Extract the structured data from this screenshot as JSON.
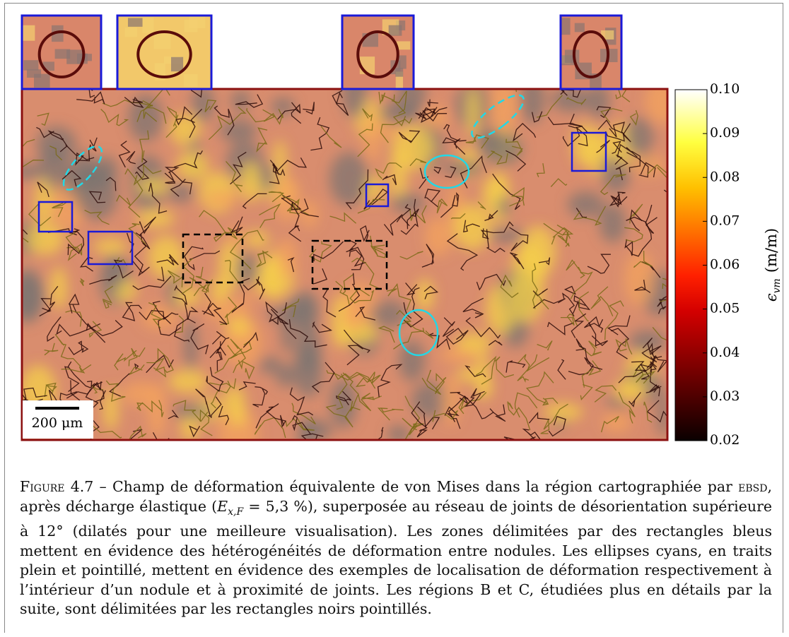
{
  "figure": {
    "scale_bar": "200 μm",
    "colorbar": {
      "symbol": "ϵ",
      "subscript": "vm",
      "unit": "(m/m)",
      "lim": [
        0.02,
        0.1
      ],
      "ticks": [
        {
          "value": 0.02,
          "label": "0.02"
        },
        {
          "value": 0.03,
          "label": "0.03"
        },
        {
          "value": 0.04,
          "label": "0.04"
        },
        {
          "value": 0.05,
          "label": "0.05"
        },
        {
          "value": 0.06,
          "label": "0.06"
        },
        {
          "value": 0.07,
          "label": "0.07"
        },
        {
          "value": 0.08,
          "label": "0.08"
        },
        {
          "value": 0.09,
          "label": "0.09"
        },
        {
          "value": 0.1,
          "label": "0.10"
        }
      ]
    }
  },
  "caption": {
    "label": "Figure 4.7",
    "dash": "–",
    "parts": [
      "Champ de déformation équivalente de von Mises dans la région cartographiée par ",
      "ebsd",
      ", après décharge élastique (",
      "E",
      "x,F",
      " = 5,3 %), superposée au réseau de joints de désorientation supérieure à 12° (dilatés pour une meilleure visualisation). Les zones délimitées par des rectangles bleus mettent en évidence des hétérogénéités de déformation entre nodules. Les ellipses cyans, en traits plein et pointillé, mettent en évidence des exemples de localisation de déformation respectivement à l’intérieur d’un nodule et à proximité de joints. Les régions B et C, étudiées plus en détails par la suite, sont délimitées par les rectangles noirs pointillés."
    ]
  }
}
